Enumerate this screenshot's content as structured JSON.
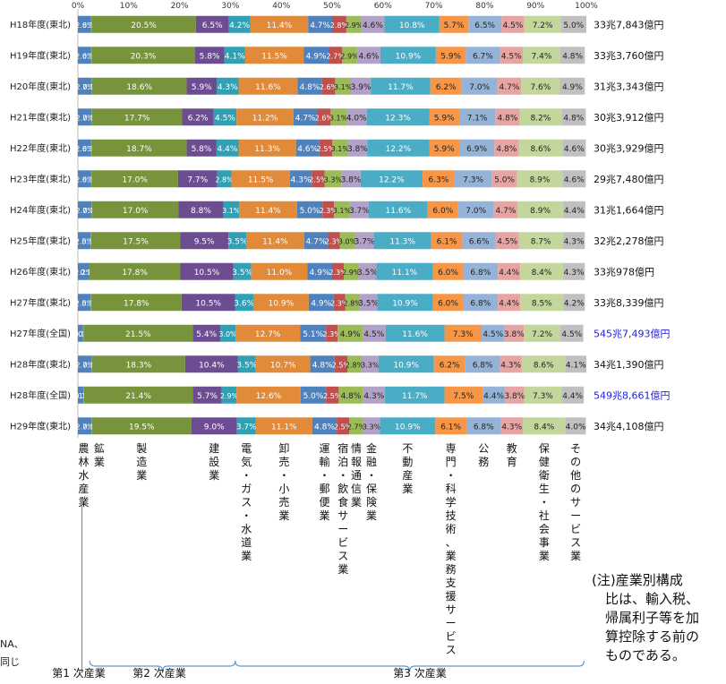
{
  "chart_data": {
    "type": "bar",
    "orientation": "horizontal",
    "stacked": true,
    "xlim": [
      0,
      100
    ],
    "x_ticks": [
      "0%",
      "10%",
      "20%",
      "30%",
      "40%",
      "50%",
      "60%",
      "70%",
      "80%",
      "90%",
      "100%"
    ],
    "categories": [
      "H18年度(東北)",
      "H19年度(東北)",
      "H20年度(東北)",
      "H21年度(東北)",
      "H22年度(東北)",
      "H23年度(東北)",
      "H24年度(東北)",
      "H25年度(東北)",
      "H26年度(東北)",
      "H27年度(東北)",
      "H27年度(全国)",
      "H28年度(東北)",
      "H28年度(全国)",
      "H29年度(東北)"
    ],
    "totals": [
      "33兆7,843億円",
      "33兆3,760億円",
      "31兆3,343億円",
      "30兆3,912億円",
      "30兆3,929億円",
      "29兆7,480億円",
      "31兆1,664億円",
      "32兆2,278億円",
      "33兆978億円",
      "33兆8,339億円",
      "545兆7,493億円",
      "34兆1,390億円",
      "549兆8,661億円",
      "34兆4,108億円"
    ],
    "highlight_rows": [
      10,
      12
    ],
    "highlight_color": "#1f1fd0",
    "series": [
      {
        "key": "agri",
        "label": "農\n林\n水\n産\n業",
        "color": "#4f81bd",
        "values": [
          2.6,
          2.6,
          2.7,
          2.7,
          2.6,
          2.6,
          2.7,
          2.5,
          2.2,
          2.5,
          1.0,
          2.7,
          1.1,
          2.7
        ]
      },
      {
        "key": "mining",
        "label": "鉱\n業",
        "color": "#6e9b30",
        "values": [
          0.1,
          0.1,
          0.1,
          0.1,
          0.1,
          0.1,
          0.1,
          0.1,
          0.1,
          0.1,
          0.1,
          0.1,
          0.1,
          0.1
        ]
      },
      {
        "key": "manufacturing",
        "label": "製\n造\n業",
        "color": "#77933c",
        "values": [
          20.5,
          20.3,
          18.6,
          17.7,
          18.7,
          17.0,
          17.0,
          17.5,
          17.8,
          17.8,
          21.5,
          18.3,
          21.4,
          19.5
        ]
      },
      {
        "key": "construction",
        "label": "建\n設\n業",
        "color": "#6c4d91",
        "values": [
          6.5,
          5.8,
          5.9,
          6.2,
          5.8,
          7.7,
          8.8,
          9.5,
          10.5,
          10.5,
          5.4,
          10.4,
          5.7,
          9.0
        ]
      },
      {
        "key": "utilities",
        "label": "電\n気\n・\nガ\nス\n・\n水\n道\n業",
        "color": "#31a0b4",
        "values": [
          4.2,
          4.1,
          4.3,
          4.5,
          4.4,
          2.8,
          3.1,
          3.5,
          3.5,
          3.6,
          3.0,
          3.5,
          2.9,
          3.7
        ]
      },
      {
        "key": "trade",
        "label": "卸\n売\n・\n小\n売\n業",
        "color": "#e08a3a",
        "values": [
          11.4,
          11.5,
          11.6,
          11.2,
          11.3,
          11.5,
          11.4,
          11.4,
          11.0,
          10.9,
          12.7,
          10.7,
          12.6,
          11.1
        ]
      },
      {
        "key": "transport",
        "label": "運\n輸\n・\n郵\n便\n業",
        "color": "#4f81bd",
        "values": [
          4.7,
          4.9,
          4.8,
          4.7,
          4.6,
          4.3,
          5.0,
          4.7,
          4.9,
          4.9,
          5.1,
          4.8,
          5.0,
          4.8
        ]
      },
      {
        "key": "hospitality",
        "label": "宿\n泊\n・\n飲\n食\nサ\nー\nビ\nス\n業",
        "color": "#c0504d",
        "values": [
          2.8,
          2.7,
          2.6,
          2.6,
          2.5,
          2.5,
          2.3,
          2.3,
          2.3,
          2.3,
          2.3,
          2.5,
          2.5,
          2.5
        ]
      },
      {
        "key": "infocomm",
        "label": "情\n報\n通\n信\n業",
        "color": "#9bbb59",
        "values": [
          2.9,
          2.9,
          3.1,
          3.1,
          3.1,
          3.3,
          3.1,
          3.0,
          2.9,
          2.8,
          4.9,
          2.8,
          4.8,
          2.7
        ]
      },
      {
        "key": "finance",
        "label": "金\n融\n・\n保\n険\n業",
        "color": "#b3a2c7",
        "values": [
          4.6,
          4.6,
          3.9,
          4.0,
          3.8,
          3.8,
          3.7,
          3.7,
          3.5,
          3.5,
          4.5,
          3.3,
          4.3,
          3.3
        ]
      },
      {
        "key": "realestate",
        "label": "不\n動\n産\n業",
        "color": "#4bacc6",
        "values": [
          10.8,
          10.9,
          11.7,
          12.3,
          12.2,
          12.2,
          11.6,
          11.3,
          11.1,
          10.9,
          11.6,
          10.9,
          11.7,
          10.9
        ]
      },
      {
        "key": "professional",
        "label": "専\n門\n・\n科\n学\n技\n術\n、\n業\n務\n支\n援\nサ\nー\nビ\nス",
        "color": "#f79646",
        "values": [
          5.7,
          5.9,
          6.2,
          5.9,
          5.9,
          6.3,
          6.0,
          6.1,
          6.0,
          6.0,
          7.3,
          6.2,
          7.5,
          6.1
        ]
      },
      {
        "key": "public",
        "label": "公\n務",
        "color": "#95b3d7",
        "values": [
          6.5,
          6.7,
          7.0,
          7.1,
          6.9,
          7.3,
          7.0,
          6.6,
          6.8,
          6.8,
          4.5,
          6.8,
          4.4,
          6.8
        ]
      },
      {
        "key": "education",
        "label": "教\n育",
        "color": "#e6a5a3",
        "values": [
          4.5,
          4.5,
          4.7,
          4.8,
          4.8,
          5.0,
          4.7,
          4.5,
          4.4,
          4.4,
          3.8,
          4.3,
          3.8,
          4.3
        ]
      },
      {
        "key": "health",
        "label": "保\n健\n衛\n生\n・\n社\n会\n事\n業",
        "color": "#c3d69b",
        "values": [
          7.2,
          7.4,
          7.6,
          8.2,
          8.6,
          8.9,
          8.9,
          8.7,
          8.4,
          8.5,
          7.2,
          8.6,
          7.3,
          8.4
        ]
      },
      {
        "key": "other",
        "label": "そ\nの\n他\nの\nサ\nー\nビ\nス\n業",
        "color": "#c0c0c0",
        "values": [
          5.0,
          4.8,
          4.9,
          4.8,
          4.6,
          4.6,
          4.4,
          4.3,
          4.3,
          4.2,
          4.5,
          4.1,
          4.4,
          4.0
        ]
      }
    ],
    "groups": [
      {
        "label": "第1 次産業",
        "from": 0,
        "to": 0
      },
      {
        "label": "第2 次産業",
        "from": 1,
        "to": 3
      },
      {
        "label": "第3 次産業",
        "from": 4,
        "to": 15
      }
    ]
  },
  "note": "(注)産業別構成\n　比は、輸入税、\n　帰属利子等を加\n　算控除する前の\n　ものである。",
  "cutoff_text": "NA、\n同じ"
}
